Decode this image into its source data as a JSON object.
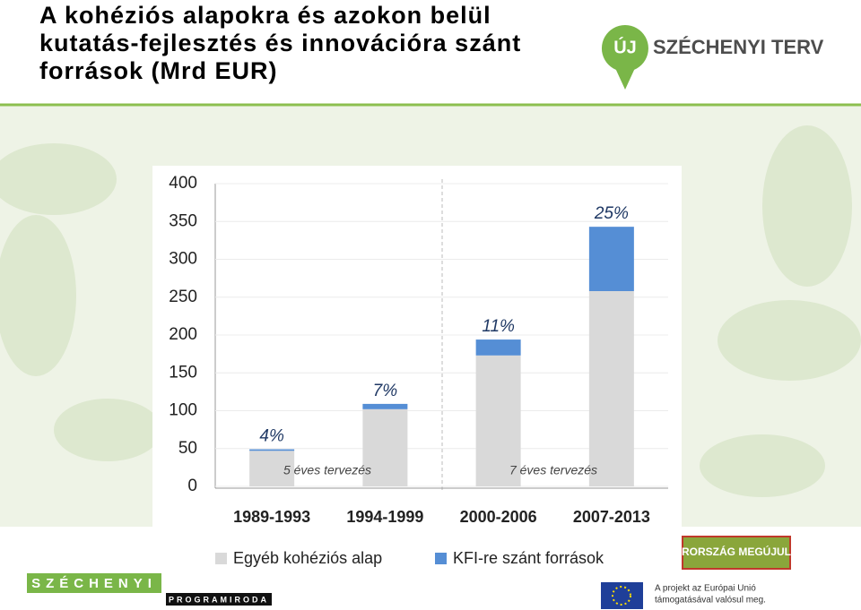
{
  "header": {
    "title": "A kohéziós alapokra és azokon belül kutatás-fejlesztés és innovációra szánt források (Mrd EUR)",
    "logo_badge": "ÚJ",
    "logo_text": "SZÉCHENYI TERV"
  },
  "chart_data": {
    "type": "stacked_bar",
    "categories": [
      "1989-1993",
      "1994-1999",
      "2000-2006",
      "2007-2013"
    ],
    "series": [
      {
        "name": "Egyéb kohéziós alap",
        "color": "#d9d9d9",
        "values": [
          47,
          102,
          173,
          258
        ]
      },
      {
        "name": "KFI-re szánt források",
        "color": "#558ed5",
        "values": [
          2,
          7,
          21,
          85
        ]
      }
    ],
    "share_labels": [
      "4%",
      "7%",
      "11%",
      "25%"
    ],
    "annotations": [
      "5 éves tervezés",
      "7 éves tervezés"
    ],
    "ylim": [
      0,
      400
    ],
    "yticks": [
      0,
      50,
      100,
      150,
      200,
      250,
      300,
      350,
      400
    ],
    "grid": true
  },
  "footer": {
    "left_logo": "SZÉCHENYI",
    "left_sub": "PROGRAMIRODA",
    "right_badge": "RORSZÁG MEGÚJUL",
    "eu_line1": "A projekt az Európai Unió",
    "eu_line2": "támogatásával valósul meg."
  }
}
